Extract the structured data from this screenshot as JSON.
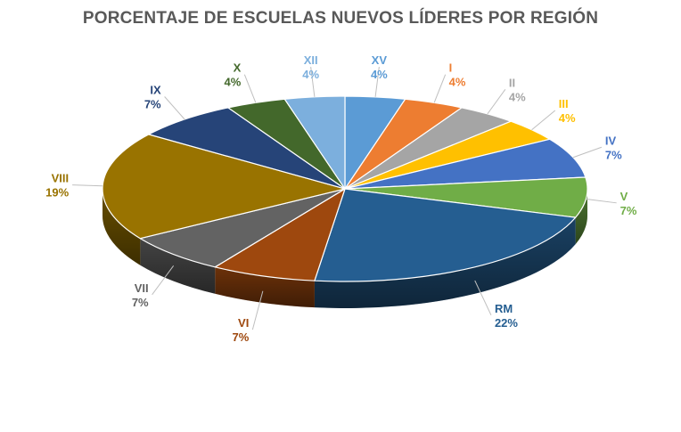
{
  "chart_data": {
    "type": "pie",
    "title": "PORCENTAJE DE ESCUELAS NUEVOS LÍDERES POR REGIÓN",
    "slices": [
      {
        "label": "XV",
        "value": 4,
        "display": "4%",
        "color": "#5B9BD5",
        "label_color": "#5B9BD5"
      },
      {
        "label": "I",
        "value": 4,
        "display": "4%",
        "color": "#ED7D31",
        "label_color": "#ED7D31"
      },
      {
        "label": "II",
        "value": 4,
        "display": "4%",
        "color": "#A5A5A5",
        "label_color": "#A5A5A5"
      },
      {
        "label": "III",
        "value": 4,
        "display": "4%",
        "color": "#FFC000",
        "label_color": "#FFC000"
      },
      {
        "label": "IV",
        "value": 7,
        "display": "7%",
        "color": "#4472C4",
        "label_color": "#4472C4"
      },
      {
        "label": "V",
        "value": 7,
        "display": "7%",
        "color": "#70AD47",
        "label_color": "#70AD47"
      },
      {
        "label": "RM",
        "value": 22,
        "display": "22%",
        "color": "#255E91",
        "label_color": "#255E91"
      },
      {
        "label": "VI",
        "value": 7,
        "display": "7%",
        "color": "#9E480E",
        "label_color": "#9E480E"
      },
      {
        "label": "VII",
        "value": 7,
        "display": "7%",
        "color": "#636363",
        "label_color": "#636363"
      },
      {
        "label": "VIII",
        "value": 19,
        "display": "19%",
        "color": "#997300",
        "label_color": "#997300"
      },
      {
        "label": "IX",
        "value": 7,
        "display": "7%",
        "color": "#264478",
        "label_color": "#264478"
      },
      {
        "label": "X",
        "value": 4,
        "display": "4%",
        "color": "#43682B",
        "label_color": "#43682B"
      },
      {
        "label": "XII",
        "value": 4,
        "display": "4%",
        "color": "#7CAFDD",
        "label_color": "#7CAFDD"
      }
    ],
    "legend": "none"
  }
}
